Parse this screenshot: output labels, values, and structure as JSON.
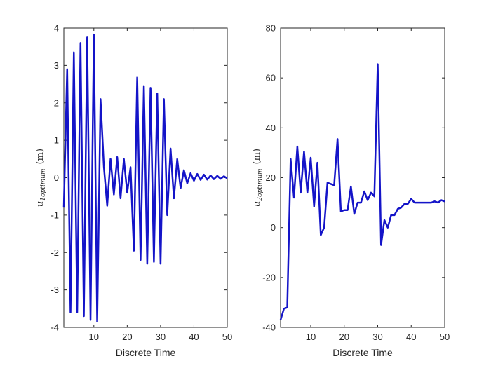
{
  "chart_data": [
    {
      "type": "line",
      "xlabel": "Discrete Time",
      "ylabel": {
        "base": "u",
        "sub": "1optimum",
        "unit": "(m)"
      },
      "xlim": [
        1,
        50
      ],
      "ylim": [
        -4,
        4
      ],
      "xticks": [
        10,
        20,
        30,
        40,
        50
      ],
      "yticks": [
        -4,
        -3,
        -2,
        -1,
        0,
        1,
        2,
        3,
        4
      ],
      "line_color": "#1414c8",
      "series": [
        {
          "x": [
            1,
            2,
            3,
            4,
            5,
            6,
            7,
            8,
            9,
            10,
            11,
            12,
            13,
            14,
            15,
            16,
            17,
            18,
            19,
            20,
            21,
            22,
            23,
            24,
            25,
            26,
            27,
            28,
            29,
            30,
            31,
            32,
            33,
            34,
            35,
            36,
            37,
            38,
            39,
            40,
            41,
            42,
            43,
            44,
            45,
            46,
            47,
            48,
            49,
            50
          ],
          "values": [
            -0.8,
            2.9,
            -3.6,
            3.35,
            -3.6,
            3.6,
            -3.7,
            3.75,
            -3.8,
            3.83,
            -3.85,
            2.1,
            0.3,
            -0.75,
            0.5,
            -0.45,
            0.55,
            -0.55,
            0.5,
            -0.4,
            0.28,
            -1.95,
            2.68,
            -2.2,
            2.45,
            -2.3,
            2.4,
            -2.25,
            2.25,
            -2.3,
            2.1,
            -1.0,
            0.78,
            -0.55,
            0.5,
            -0.28,
            0.2,
            -0.15,
            0.12,
            -0.08,
            0.1,
            -0.06,
            0.08,
            -0.05,
            0.06,
            -0.04,
            0.05,
            -0.03,
            0.04,
            -0.02
          ]
        }
      ]
    },
    {
      "type": "line",
      "xlabel": "Discrete Time",
      "ylabel": {
        "base": "u",
        "sub": "2optimum",
        "unit": "(m)"
      },
      "xlim": [
        1,
        50
      ],
      "ylim": [
        -40,
        80
      ],
      "xticks": [
        10,
        20,
        30,
        40,
        50
      ],
      "yticks": [
        -40,
        -20,
        0,
        20,
        40,
        60,
        80
      ],
      "line_color": "#1414c8",
      "series": [
        {
          "x": [
            1,
            2,
            3,
            4,
            5,
            6,
            7,
            8,
            9,
            10,
            11,
            12,
            13,
            14,
            15,
            16,
            17,
            18,
            19,
            20,
            21,
            22,
            23,
            24,
            25,
            26,
            27,
            28,
            29,
            30,
            31,
            32,
            33,
            34,
            35,
            36,
            37,
            38,
            39,
            40,
            41,
            42,
            43,
            44,
            45,
            46,
            47,
            48,
            49,
            50
          ],
          "values": [
            -37,
            -32.5,
            -32,
            27.5,
            12,
            32.5,
            14,
            30.5,
            14,
            28,
            8.5,
            26,
            -3,
            0,
            18,
            17.5,
            17,
            35.5,
            6.5,
            7,
            7,
            16.5,
            5.5,
            10,
            10,
            14.5,
            11,
            14,
            12.5,
            65.5,
            -7,
            3,
            0,
            5,
            5,
            7.5,
            8,
            9.5,
            9.5,
            11.5,
            10,
            10,
            10,
            10,
            10,
            10,
            10.5,
            10,
            11,
            10.5
          ]
        }
      ]
    }
  ]
}
